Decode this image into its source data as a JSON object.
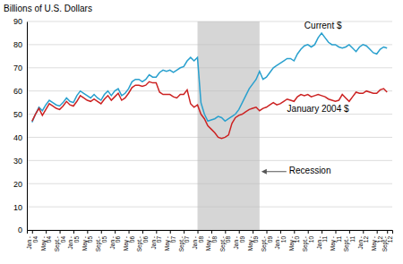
{
  "chart_data": {
    "type": "line",
    "ylabel": "Billions of U.S. Dollars",
    "categories": [
      "Jan -\n04",
      null,
      null,
      null,
      "May -\n04",
      null,
      null,
      null,
      "Sept.-\n04",
      null,
      null,
      null,
      "Jan -\n05",
      null,
      null,
      null,
      "May -\n05",
      null,
      null,
      null,
      "Sept.-\n05",
      null,
      null,
      null,
      "Jan -\n06",
      null,
      null,
      null,
      "May -\n06",
      null,
      null,
      null,
      "Sept.-\n06",
      null,
      null,
      null,
      "Jan -\n07",
      null,
      null,
      null,
      "May -\n07",
      null,
      null,
      null,
      "Sept.-\n07",
      null,
      null,
      null,
      "Jan -\n08",
      null,
      null,
      null,
      "May -\n08",
      null,
      null,
      null,
      "Sept.-\n08",
      null,
      null,
      null,
      "Jan -\n09",
      null,
      null,
      null,
      "May -\n09",
      null,
      null,
      null,
      "Sept.-\n09",
      null,
      null,
      null,
      "Jan -\n10",
      null,
      null,
      null,
      "May -\n10",
      null,
      null,
      null,
      "Sept.-\n10",
      null,
      null,
      null,
      "Jan -\n11",
      null,
      null,
      null,
      "May -\n11",
      null,
      null,
      null,
      "Sept.-\n11",
      null,
      null,
      null,
      "Jan -\n12",
      null,
      null,
      null,
      "May -\n12",
      null,
      null,
      "Sept.-\n12"
    ],
    "series": [
      {
        "name": "Current $",
        "color": "#29A0CE",
        "values": [
          46.5,
          50.0,
          53.0,
          51.5,
          54.0,
          56.0,
          55.0,
          54.0,
          53.5,
          55.0,
          57.0,
          55.5,
          55.0,
          58.0,
          60.0,
          59.0,
          58.0,
          57.0,
          58.5,
          57.0,
          56.0,
          58.5,
          60.0,
          58.0,
          60.0,
          61.0,
          58.0,
          59.0,
          61.0,
          64.0,
          65.0,
          65.0,
          64.0,
          65.0,
          67.0,
          66.0,
          66.0,
          68.0,
          69.0,
          68.5,
          69.0,
          68.0,
          69.0,
          70.0,
          70.5,
          73.0,
          74.5,
          73.0,
          74.5,
          55.0,
          50.0,
          47.0,
          47.5,
          48.0,
          49.0,
          48.5,
          47.0,
          48.0,
          49.0,
          50.0,
          52.0,
          55.0,
          58.0,
          61.0,
          63.0,
          65.0,
          68.5,
          65.0,
          66.0,
          68.0,
          70.0,
          71.0,
          72.0,
          73.0,
          74.0,
          74.0,
          73.0,
          76.0,
          78.0,
          79.5,
          80.0,
          79.0,
          80.0,
          83.0,
          85.0,
          83.0,
          81.0,
          80.0,
          80.0,
          79.0,
          78.5,
          79.0,
          80.0,
          78.5,
          77.0,
          79.0,
          80.0,
          79.5,
          78.0,
          76.5,
          76.0,
          78.0,
          79.0,
          78.5
        ]
      },
      {
        "name": "January 2004 $",
        "color": "#CC2222",
        "values": [
          47.0,
          50.0,
          52.5,
          49.5,
          52.0,
          54.5,
          53.5,
          52.5,
          52.0,
          53.5,
          55.5,
          54.0,
          53.5,
          55.5,
          58.0,
          57.0,
          56.0,
          55.5,
          56.5,
          55.5,
          54.5,
          56.5,
          58.0,
          56.0,
          57.5,
          59.0,
          56.0,
          57.0,
          59.0,
          61.5,
          62.5,
          62.5,
          62.0,
          62.5,
          64.0,
          63.5,
          63.5,
          59.5,
          58.5,
          58.5,
          58.5,
          57.5,
          57.0,
          58.5,
          58.5,
          60.5,
          54.5,
          53.0,
          54.0,
          50.0,
          48.0,
          45.0,
          43.5,
          42.0,
          40.0,
          39.5,
          40.0,
          41.0,
          46.0,
          48.5,
          49.5,
          50.0,
          51.0,
          52.0,
          52.5,
          53.0,
          51.5,
          52.5,
          53.0,
          54.0,
          55.0,
          54.0,
          54.5,
          55.5,
          56.5,
          56.0,
          55.5,
          57.5,
          58.5,
          58.0,
          58.5,
          57.5,
          58.0,
          58.5,
          58.0,
          57.5,
          56.5,
          56.0,
          55.5,
          56.0,
          58.5,
          57.0,
          55.5,
          57.5,
          59.5,
          59.0,
          59.0,
          60.0,
          59.5,
          59.0,
          59.0,
          60.5,
          61.0,
          59.5
        ]
      }
    ],
    "ylim": [
      0,
      90
    ],
    "yticks": [
      0,
      10,
      20,
      30,
      40,
      50,
      60,
      70,
      80,
      90
    ],
    "grid": true,
    "shaded_regions": [
      {
        "label": "Recession",
        "start": 48,
        "end": 66,
        "color": "#BBBBBB"
      }
    ]
  }
}
